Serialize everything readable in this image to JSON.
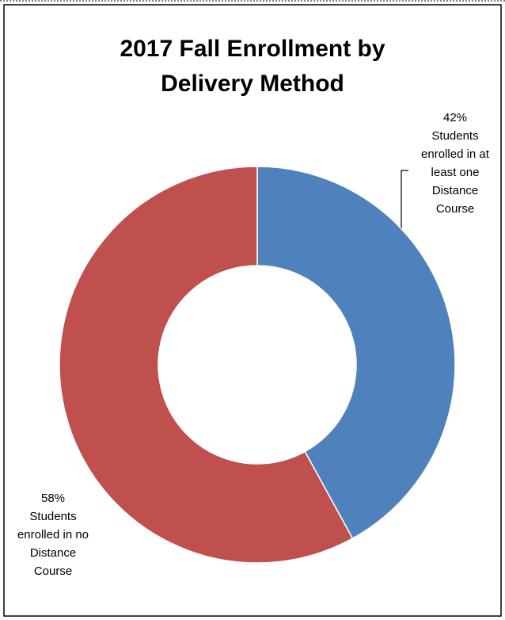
{
  "chart_data": {
    "type": "donut",
    "title": "2017 Fall Enrollment by Delivery Method",
    "categories": [
      "Students enrolled in at least one Distance Course",
      "Students enrolled in no Distance Course"
    ],
    "values": [
      42,
      58
    ],
    "value_labels": [
      "42%",
      "58%"
    ],
    "colors": [
      "#4f81bd",
      "#c0504d"
    ]
  }
}
